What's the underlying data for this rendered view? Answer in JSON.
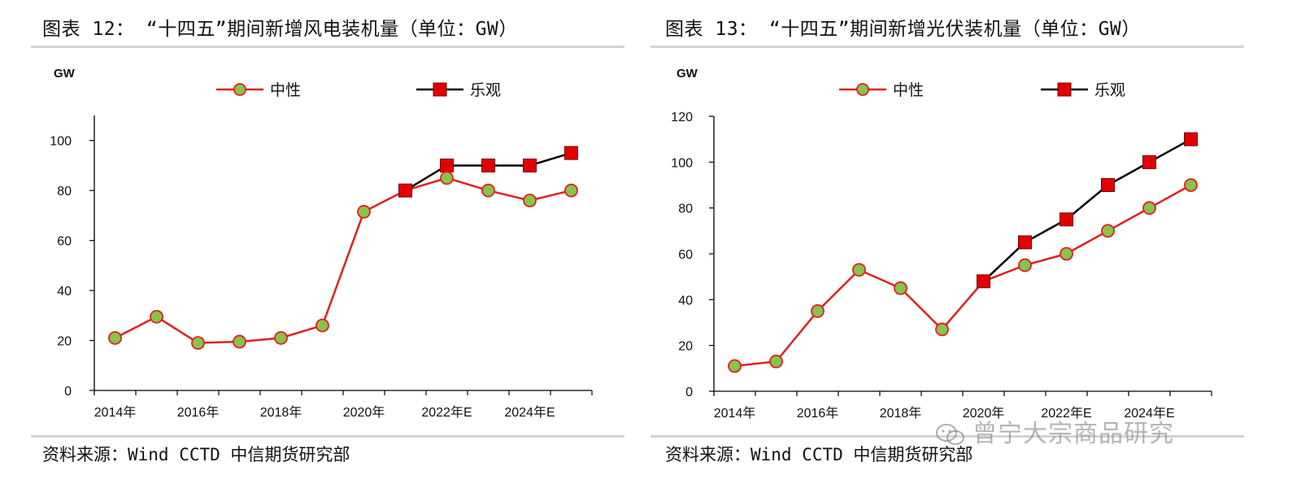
{
  "charts": [
    {
      "title": "图表 12： “十四五”期间新增风电装机量（单位：GW）",
      "source": "资料来源：Wind CCTD 中信期货研究部",
      "unit_label": "GW",
      "legend_neutral": "中性",
      "legend_optimistic": "乐观",
      "x_tick_labels": [
        "2014年",
        "2016年",
        "2018年",
        "2020年",
        "2022年E",
        "2024年E"
      ],
      "y_tick_labels": [
        "0",
        "20",
        "40",
        "60",
        "80",
        "100"
      ]
    },
    {
      "title": "图表 13： “十四五”期间新增光伏装机量（单位：GW）",
      "source": "资料来源：Wind CCTD 中信期货研究部",
      "unit_label": "GW",
      "legend_neutral": "中性",
      "legend_optimistic": "乐观",
      "x_tick_labels": [
        "2014年",
        "2016年",
        "2018年",
        "2020年",
        "2022年E",
        "2024年E"
      ],
      "y_tick_labels": [
        "0",
        "20",
        "40",
        "60",
        "80",
        "100",
        "120"
      ]
    }
  ],
  "watermark": "曾宁大宗商品研究",
  "colors": {
    "neutral_line": "#e02020",
    "neutral_marker": "#8ac24a",
    "optimistic_line": "#000000",
    "optimistic_marker": "#e00000"
  },
  "chart_data": [
    {
      "type": "line",
      "title": "图表 12： “十四五”期间新增风电装机量（单位：GW）",
      "ylabel": "GW",
      "x": [
        "2014",
        "2015",
        "2016",
        "2017",
        "2018",
        "2019",
        "2020",
        "2021",
        "2022E",
        "2023E",
        "2024E",
        "2025E"
      ],
      "ylim": [
        0,
        110
      ],
      "yticks": [
        0,
        20,
        40,
        60,
        80,
        100
      ],
      "grid": false,
      "legend": "top",
      "series": [
        {
          "name": "中性",
          "values": [
            21,
            29.5,
            19,
            19.5,
            21,
            26,
            71.5,
            80,
            85,
            80,
            76,
            80
          ]
        },
        {
          "name": "乐观",
          "values": [
            null,
            null,
            null,
            null,
            null,
            null,
            null,
            80,
            90,
            90,
            90,
            95
          ]
        }
      ]
    },
    {
      "type": "line",
      "title": "图表 13： “十四五”期间新增光伏装机量（单位：GW）",
      "ylabel": "GW",
      "x": [
        "2014",
        "2015",
        "2016",
        "2017",
        "2018",
        "2019",
        "2020",
        "2021",
        "2022E",
        "2023E",
        "2024E",
        "2025E"
      ],
      "ylim": [
        0,
        120
      ],
      "yticks": [
        0,
        20,
        40,
        60,
        80,
        100,
        120
      ],
      "grid": false,
      "legend": "top",
      "series": [
        {
          "name": "中性",
          "values": [
            11,
            13,
            35,
            53,
            45,
            27,
            48,
            55,
            60,
            70,
            80,
            90
          ]
        },
        {
          "name": "乐观",
          "values": [
            null,
            null,
            null,
            null,
            null,
            null,
            48,
            65,
            75,
            90,
            100,
            110
          ]
        }
      ]
    }
  ]
}
